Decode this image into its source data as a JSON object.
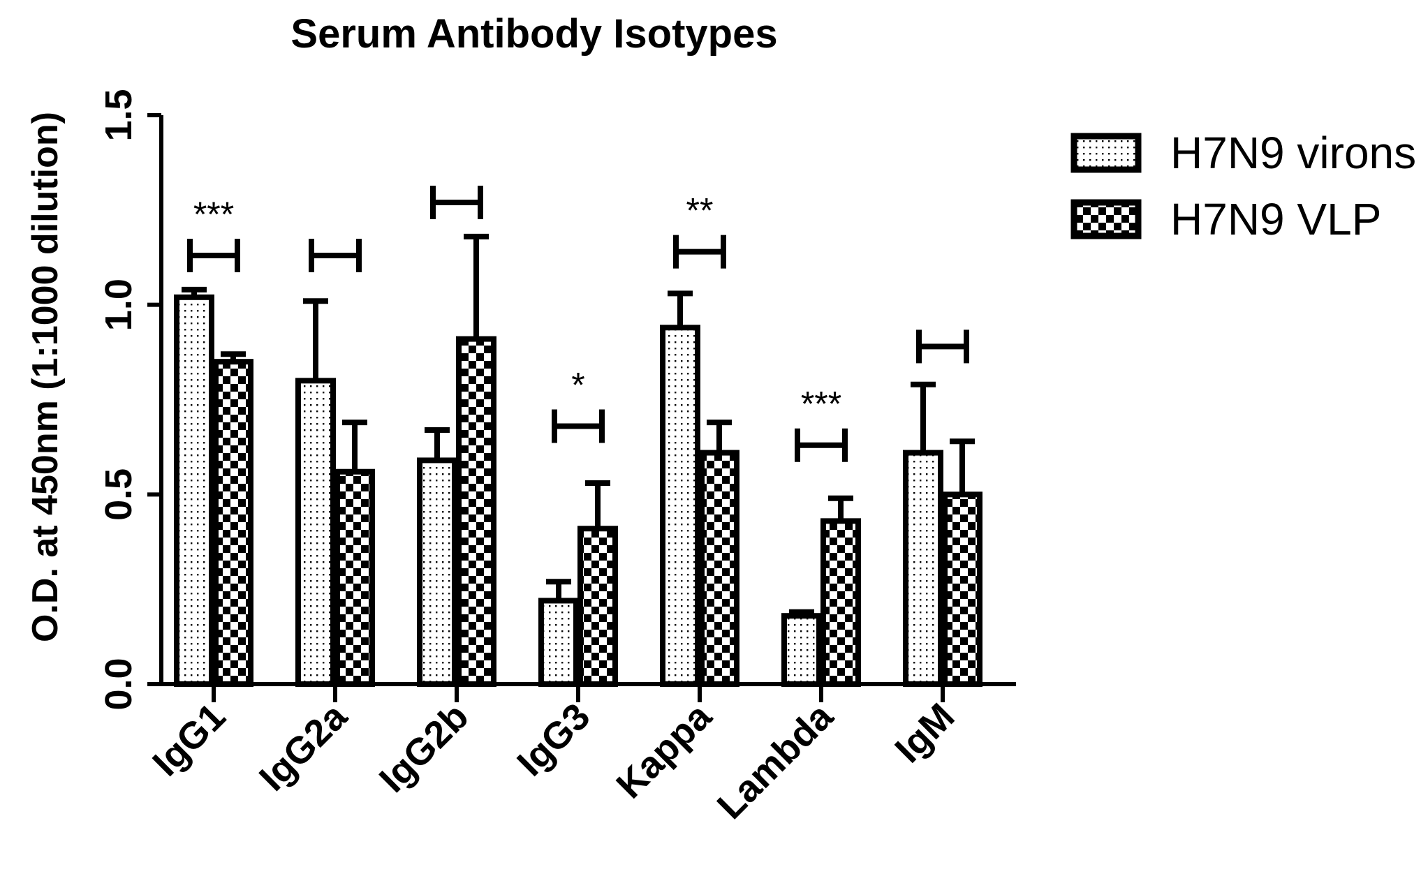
{
  "chart_data": {
    "type": "bar",
    "title": "Serum Antibody Isotypes",
    "xlabel": "",
    "ylabel": "O.D. at 450nm (1:1000 dilution)",
    "ylim": [
      0,
      1.5
    ],
    "yticks": [
      "0.0",
      "0.5",
      "1.0",
      "1.5"
    ],
    "categories": [
      "IgG1",
      "IgG2a",
      "IgG2b",
      "IgG3",
      "Kappa",
      "Lambda",
      "IgM"
    ],
    "series": [
      {
        "name": "H7N9 virons",
        "pattern": "dots",
        "values": [
          1.02,
          0.8,
          0.59,
          0.22,
          0.94,
          0.18,
          0.61
        ],
        "errors": [
          0.02,
          0.21,
          0.08,
          0.05,
          0.09,
          0.01,
          0.18
        ]
      },
      {
        "name": "H7N9 VLP",
        "pattern": "checker",
        "values": [
          0.85,
          0.56,
          0.91,
          0.41,
          0.61,
          0.43,
          0.5
        ],
        "errors": [
          0.02,
          0.13,
          0.27,
          0.12,
          0.08,
          0.06,
          0.14
        ]
      }
    ],
    "significance": [
      {
        "category": "IgG1",
        "label": "***",
        "y": 1.13
      },
      {
        "category": "IgG2a",
        "label": "",
        "y": 1.13
      },
      {
        "category": "IgG2b",
        "label": "",
        "y": 1.27
      },
      {
        "category": "IgG3",
        "label": "*",
        "y": 0.68
      },
      {
        "category": "Kappa",
        "label": "**",
        "y": 1.14
      },
      {
        "category": "Lambda",
        "label": "***",
        "y": 0.63
      },
      {
        "category": "IgM",
        "label": "",
        "y": 0.89
      }
    ],
    "legend": {
      "position": "top-right"
    },
    "grid": false
  }
}
